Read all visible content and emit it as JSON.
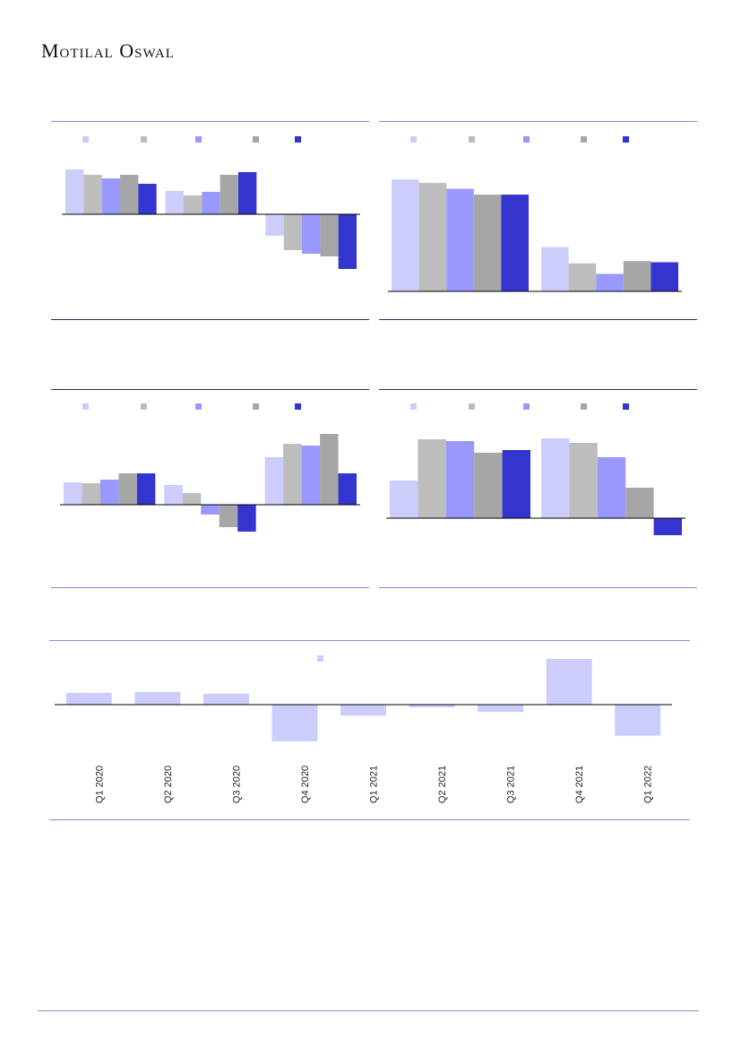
{
  "brand": {
    "name": "Motilal Oswal"
  },
  "colors": {
    "rule_blue": "#8a8ad6",
    "rule_dark": "#2a2a6e",
    "s1": "#cccdfc",
    "s2": "#bdbdbd",
    "s3": "#9999fd",
    "s4": "#a6a6a6",
    "s5": "#3434ce"
  },
  "chart_data": [
    {
      "id": "c1",
      "type": "bar",
      "legend": "top",
      "grid": false,
      "categories": [
        "",
        "",
        ""
      ],
      "series": [
        {
          "values": [
            5.0,
            2.6,
            -2.4
          ],
          "color": "#cccdfc"
        },
        {
          "values": [
            4.4,
            2.1,
            -4.0
          ],
          "color": "#bdbdbd"
        },
        {
          "values": [
            4.0,
            2.5,
            -4.4
          ],
          "color": "#9999fd"
        },
        {
          "values": [
            4.4,
            4.4,
            -4.7
          ],
          "color": "#a6a6a6"
        },
        {
          "values": [
            3.4,
            4.7,
            -6.1
          ],
          "color": "#3434ce"
        }
      ],
      "ylim": [
        -8,
        6
      ]
    },
    {
      "id": "c2",
      "type": "bar",
      "legend": "top",
      "grid": false,
      "categories": [
        "",
        ""
      ],
      "series": [
        {
          "values": [
            9.6,
            3.8
          ],
          "color": "#cccdfc"
        },
        {
          "values": [
            9.3,
            2.4
          ],
          "color": "#bdbdbd"
        },
        {
          "values": [
            8.8,
            1.5
          ],
          "color": "#9999fd"
        },
        {
          "values": [
            8.3,
            2.6
          ],
          "color": "#a6a6a6"
        },
        {
          "values": [
            8.3,
            2.5
          ],
          "color": "#3434ce"
        }
      ],
      "ylim": [
        0,
        10
      ]
    },
    {
      "id": "c3",
      "type": "bar",
      "legend": "top",
      "grid": false,
      "categories": [
        "",
        "",
        ""
      ],
      "series": [
        {
          "values": [
            2.5,
            2.2,
            5.3
          ],
          "color": "#cccdfc"
        },
        {
          "values": [
            2.4,
            1.3,
            6.8
          ],
          "color": "#bdbdbd"
        },
        {
          "values": [
            2.8,
            -1.1,
            6.6
          ],
          "color": "#9999fd"
        },
        {
          "values": [
            3.5,
            -2.5,
            7.9
          ],
          "color": "#a6a6a6"
        },
        {
          "values": [
            3.5,
            -3.0,
            3.5
          ],
          "color": "#3434ce"
        }
      ],
      "ylim": [
        -5,
        8
      ]
    },
    {
      "id": "c4",
      "type": "bar",
      "legend": "top",
      "grid": false,
      "categories": [
        "",
        ""
      ],
      "series": [
        {
          "values": [
            4.2,
            8.9
          ],
          "color": "#cccdfc"
        },
        {
          "values": [
            8.8,
            8.4
          ],
          "color": "#bdbdbd"
        },
        {
          "values": [
            8.6,
            6.8
          ],
          "color": "#9999fd"
        },
        {
          "values": [
            7.3,
            3.4
          ],
          "color": "#a6a6a6"
        },
        {
          "values": [
            7.6,
            -1.9
          ],
          "color": "#3434ce"
        }
      ],
      "ylim": [
        -3,
        10
      ]
    },
    {
      "id": "c5",
      "type": "bar",
      "legend": "top",
      "grid": false,
      "categories": [
        "Q1 2020",
        "Q2 2020",
        "Q3 2020",
        "Q4 2020",
        "Q1 2021",
        "Q2 2021",
        "Q3 2021",
        "Q4 2021",
        "Q1 2022"
      ],
      "series": [
        {
          "values": [
            1.3,
            1.4,
            1.2,
            -4.0,
            -1.2,
            -0.3,
            -0.8,
            5.0,
            -3.4
          ],
          "color": "#cccdfc"
        }
      ],
      "ylim": [
        -6,
        6
      ]
    }
  ]
}
